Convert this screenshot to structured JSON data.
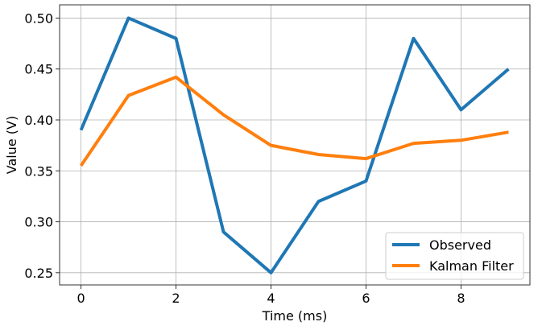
{
  "chart_data": {
    "type": "line",
    "title": "",
    "xlabel": "Time (ms)",
    "ylabel": "Value (V)",
    "xlim": [
      -0.45,
      9.45
    ],
    "ylim": [
      0.238,
      0.513
    ],
    "grid": true,
    "legend_position": "bottom-right",
    "x": [
      0,
      1,
      2,
      3,
      4,
      5,
      6,
      7,
      8,
      9
    ],
    "x_ticks": [
      0,
      2,
      4,
      6,
      8
    ],
    "x_tick_labels": [
      "0",
      "2",
      "4",
      "6",
      "8"
    ],
    "y_ticks": [
      0.25,
      0.3,
      0.35,
      0.4,
      0.45,
      0.5
    ],
    "y_tick_labels": [
      "0.25",
      "0.30",
      "0.35",
      "0.40",
      "0.45",
      "0.50"
    ],
    "series": [
      {
        "name": "Observed",
        "color": "#1f77b4",
        "values": [
          0.39,
          0.5,
          0.48,
          0.29,
          0.25,
          0.32,
          0.34,
          0.48,
          0.41,
          0.45
        ]
      },
      {
        "name": "Kalman Filter",
        "color": "#ff7f0e",
        "values": [
          0.355,
          0.424,
          0.442,
          0.405,
          0.375,
          0.366,
          0.362,
          0.377,
          0.38,
          0.388
        ]
      }
    ]
  }
}
